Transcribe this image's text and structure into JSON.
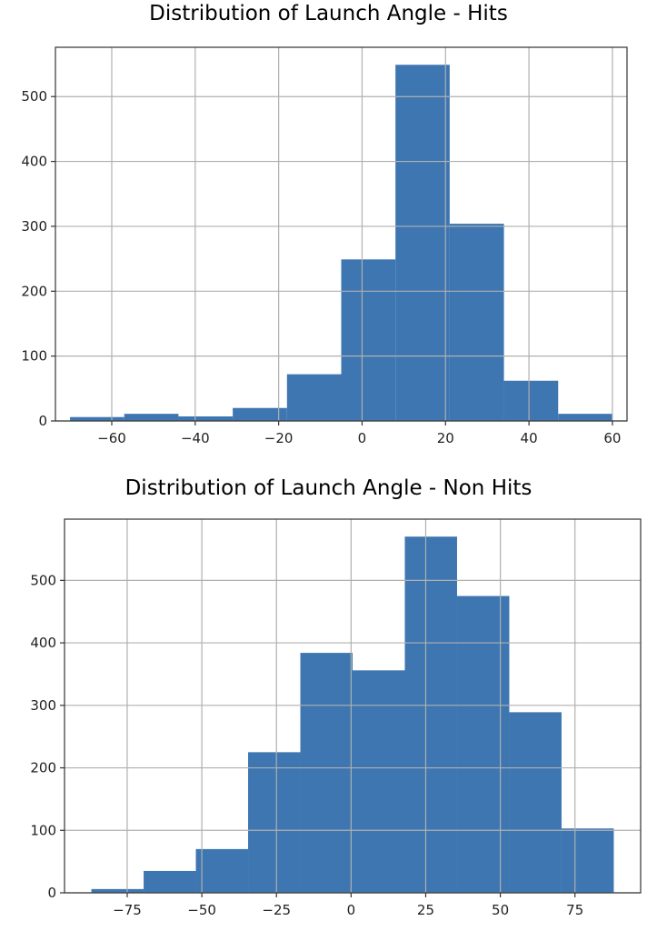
{
  "chart_data": [
    {
      "type": "bar",
      "title": "Distribution of Launch Angle - Hits",
      "xlabel": "",
      "ylabel": "",
      "bin_edges": [
        -70,
        -57,
        -44,
        -31,
        -18,
        -5,
        8,
        21,
        34,
        47,
        60
      ],
      "values": [
        6,
        11,
        7,
        20,
        72,
        249,
        549,
        304,
        62,
        11
      ],
      "xticks": [
        -60,
        -40,
        -20,
        0,
        20,
        40,
        60
      ],
      "xtick_labels": [
        "−60",
        "−40",
        "−20",
        "0",
        "20",
        "40",
        "60"
      ],
      "yticks": [
        0,
        100,
        200,
        300,
        400,
        500
      ],
      "xlim": [
        -73.5,
        63.5
      ],
      "ylim": [
        0,
        576
      ],
      "grid": true,
      "bar_color": "#3d76b1"
    },
    {
      "type": "bar",
      "title": "Distribution of Launch Angle - Non Hits",
      "xlabel": "",
      "ylabel": "",
      "bin_edges": [
        -87,
        -69.5,
        -52,
        -34.5,
        -17,
        0.5,
        18,
        35.5,
        53,
        70.5,
        88
      ],
      "values": [
        6,
        35,
        70,
        225,
        384,
        356,
        570,
        475,
        289,
        103
      ],
      "xticks": [
        -75,
        -50,
        -25,
        0,
        25,
        50,
        75
      ],
      "xtick_labels": [
        "−75",
        "−50",
        "−25",
        "0",
        "25",
        "50",
        "75"
      ],
      "yticks": [
        0,
        100,
        200,
        300,
        400,
        500
      ],
      "xlim": [
        -96,
        97
      ],
      "ylim": [
        0,
        598
      ],
      "grid": true,
      "bar_color": "#3d76b1"
    }
  ]
}
